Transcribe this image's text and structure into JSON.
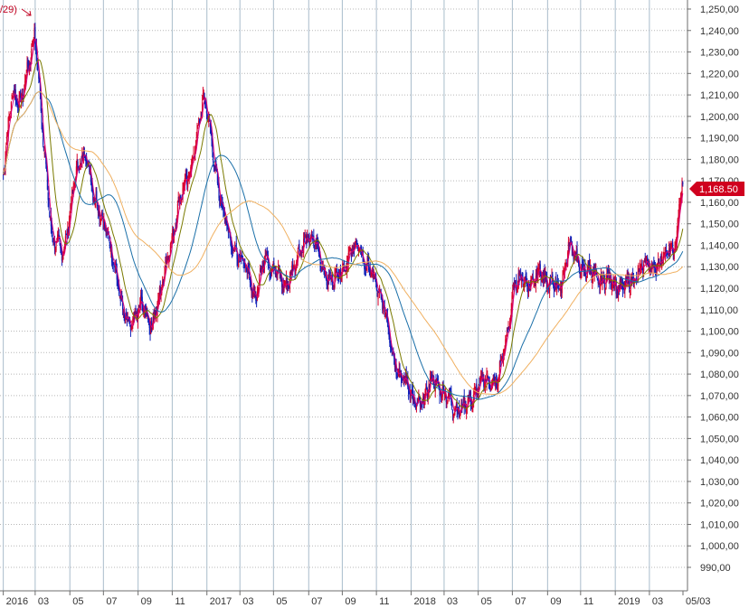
{
  "chart_data": {
    "type": "candlestick",
    "title": "",
    "xlabel": "",
    "ylabel": "",
    "ylim": [
      985,
      1255
    ],
    "y_ticks": [
      "990,00",
      "1,000,00",
      "1,010,00",
      "1,020,00",
      "1,030,00",
      "1,040,00",
      "1,050,00",
      "1,060,00",
      "1,070,00",
      "1,080,00",
      "1,090,00",
      "1,100,00",
      "1,110,00",
      "1,120,00",
      "1,130,00",
      "1,140,00",
      "1,150,00",
      "1,160,00",
      "1,170,00",
      "1,180,00",
      "1,190,00",
      "1,200,00",
      "1,210,00",
      "1,220,00",
      "1,230,00",
      "1,240,00",
      "1,250,00"
    ],
    "x_tick_labels": [
      "2016",
      "03",
      "05",
      "07",
      "09",
      "11",
      "2017",
      "03",
      "05",
      "07",
      "09",
      "11",
      "2018",
      "03",
      "05",
      "07",
      "09",
      "11",
      "2019",
      "03",
      "05/03"
    ],
    "grid": true,
    "last_price_label": "1,168.50",
    "annotation": "/29)",
    "price_anchors": [
      [
        "2016-01-04",
        1172
      ],
      [
        "2016-01-20",
        1213
      ],
      [
        "2016-02-05",
        1205
      ],
      [
        "2016-02-29",
        1240
      ],
      [
        "2016-03-15",
        1190
      ],
      [
        "2016-03-31",
        1145
      ],
      [
        "2016-04-20",
        1135
      ],
      [
        "2016-05-10",
        1170
      ],
      [
        "2016-05-31",
        1185
      ],
      [
        "2016-06-15",
        1160
      ],
      [
        "2016-07-05",
        1150
      ],
      [
        "2016-07-20",
        1130
      ],
      [
        "2016-08-05",
        1110
      ],
      [
        "2016-08-20",
        1100
      ],
      [
        "2016-09-07",
        1115
      ],
      [
        "2016-09-25",
        1100
      ],
      [
        "2016-10-15",
        1125
      ],
      [
        "2016-10-31",
        1140
      ],
      [
        "2016-11-15",
        1165
      ],
      [
        "2016-12-01",
        1170
      ],
      [
        "2016-12-20",
        1200
      ],
      [
        "2016-12-28",
        1208
      ],
      [
        "2017-01-10",
        1190
      ],
      [
        "2017-01-25",
        1162
      ],
      [
        "2017-02-10",
        1145
      ],
      [
        "2017-02-28",
        1135
      ],
      [
        "2017-03-15",
        1128
      ],
      [
        "2017-03-31",
        1115
      ],
      [
        "2017-04-15",
        1135
      ],
      [
        "2017-05-01",
        1130
      ],
      [
        "2017-05-20",
        1120
      ],
      [
        "2017-06-10",
        1132
      ],
      [
        "2017-06-30",
        1145
      ],
      [
        "2017-07-15",
        1140
      ],
      [
        "2017-07-31",
        1128
      ],
      [
        "2017-08-15",
        1122
      ],
      [
        "2017-08-31",
        1130
      ],
      [
        "2017-09-15",
        1135
      ],
      [
        "2017-09-29",
        1140
      ],
      [
        "2017-10-15",
        1130
      ],
      [
        "2017-10-31",
        1122
      ],
      [
        "2017-11-15",
        1112
      ],
      [
        "2017-11-30",
        1088
      ],
      [
        "2017-12-15",
        1080
      ],
      [
        "2018-01-05",
        1068
      ],
      [
        "2018-01-25",
        1066
      ],
      [
        "2018-02-10",
        1080
      ],
      [
        "2018-02-28",
        1070
      ],
      [
        "2018-03-15",
        1068
      ],
      [
        "2018-03-31",
        1062
      ],
      [
        "2018-04-15",
        1068
      ],
      [
        "2018-04-30",
        1072
      ],
      [
        "2018-05-15",
        1078
      ],
      [
        "2018-06-05",
        1075
      ],
      [
        "2018-06-20",
        1095
      ],
      [
        "2018-07-05",
        1120
      ],
      [
        "2018-07-20",
        1125
      ],
      [
        "2018-08-05",
        1122
      ],
      [
        "2018-08-20",
        1128
      ],
      [
        "2018-09-05",
        1122
      ],
      [
        "2018-09-25",
        1120
      ],
      [
        "2018-10-11",
        1140
      ],
      [
        "2018-10-31",
        1130
      ],
      [
        "2018-11-15",
        1128
      ],
      [
        "2018-11-30",
        1124
      ],
      [
        "2018-12-15",
        1124
      ],
      [
        "2019-01-02",
        1122
      ],
      [
        "2019-01-20",
        1120
      ],
      [
        "2019-02-05",
        1125
      ],
      [
        "2019-02-20",
        1130
      ],
      [
        "2019-03-05",
        1130
      ],
      [
        "2019-03-20",
        1132
      ],
      [
        "2019-04-05",
        1136
      ],
      [
        "2019-04-20",
        1140
      ],
      [
        "2019-04-26",
        1157
      ],
      [
        "2019-05-03",
        1168.5
      ]
    ],
    "series": [
      {
        "type": "moving-average",
        "period": 5,
        "color": "#d6007a"
      },
      {
        "type": "moving-average",
        "period": 20,
        "color": "#7a7a00"
      },
      {
        "type": "moving-average",
        "period": 60,
        "color": "#1a6fa8"
      },
      {
        "type": "moving-average",
        "period": 120,
        "color": "#f0b060"
      }
    ],
    "up_color": "#d8002a",
    "down_color": "#1020b8"
  }
}
